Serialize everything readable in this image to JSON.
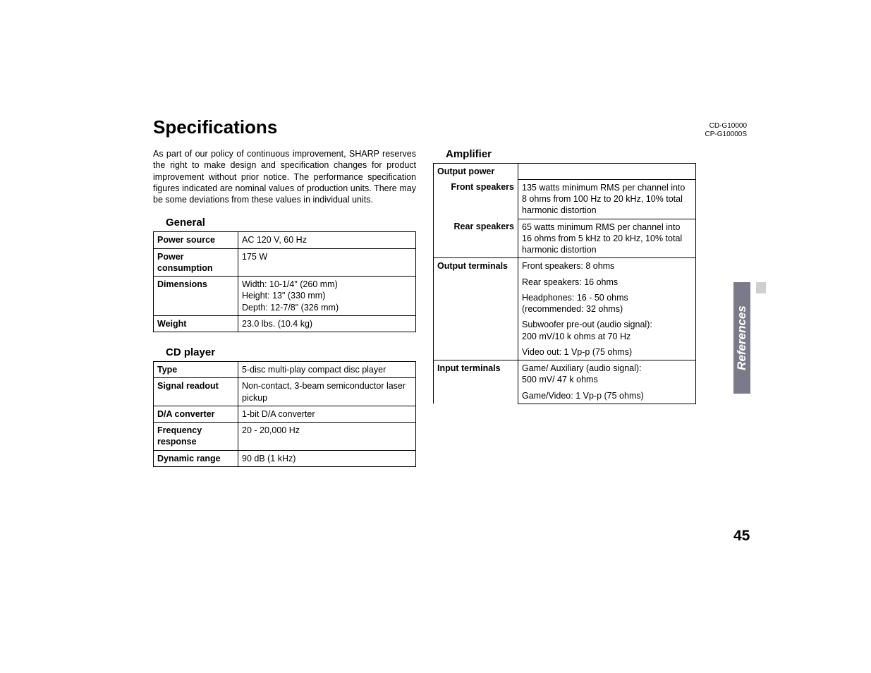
{
  "title": "Specifications",
  "intro": "As part of our policy of continuous improvement, SHARP reserves the right to make design and specification changes for product improvement without prior notice. The performance specification figures indicated are nominal values of production units. There may be some deviations from these values in individual units.",
  "model_ids": [
    "CD-G10000",
    "CP-G10000S"
  ],
  "side_tab": "References",
  "page_number": "45",
  "general": {
    "heading": "General",
    "rows": [
      {
        "label": "Power source",
        "value": "AC 120 V, 60 Hz"
      },
      {
        "label": "Power consumption",
        "value": "175 W"
      },
      {
        "label": "Dimensions",
        "value": "Width: 10-1/4\" (260 mm)\nHeight: 13\" (330 mm)\nDepth: 12-7/8\" (326 mm)"
      },
      {
        "label": "Weight",
        "value": "23.0 lbs. (10.4 kg)"
      }
    ]
  },
  "cdplayer": {
    "heading": "CD player",
    "rows": [
      {
        "label": "Type",
        "value": "5-disc multi-play compact disc player"
      },
      {
        "label": "Signal readout",
        "value": "Non-contact, 3-beam semiconductor laser pickup"
      },
      {
        "label": "D/A converter",
        "value": "1-bit D/A converter"
      },
      {
        "label": "Frequency response",
        "value": "20 - 20,000 Hz"
      },
      {
        "label": "Dynamic range",
        "value": "90 dB (1 kHz)"
      }
    ]
  },
  "amplifier": {
    "heading": "Amplifier",
    "output_power_label": "Output power",
    "front_label": "Front speakers",
    "front_value": "135 watts minimum RMS per channel into 8 ohms from 100 Hz to 20 kHz, 10% total harmonic distortion",
    "rear_label": "Rear speakers",
    "rear_value": "65 watts minimum RMS per channel into 16 ohms from 5 kHz to 20 kHz, 10% total harmonic distortion",
    "output_terminals_label": "Output terminals",
    "output_terminals": [
      "Front speakers: 8 ohms",
      "Rear speakers: 16 ohms",
      "Headphones: 16 - 50 ohms\n(recommended: 32 ohms)",
      "Subwoofer pre-out (audio signal):\n200 mV/10 k ohms at 70 Hz",
      "Video out: 1 Vp-p (75 ohms)"
    ],
    "input_terminals_label": "Input terminals",
    "input_terminals": [
      "Game/ Auxiliary (audio signal):\n500 mV/ 47 k ohms",
      "Game/Video: 1 Vp-p (75 ohms)"
    ]
  }
}
